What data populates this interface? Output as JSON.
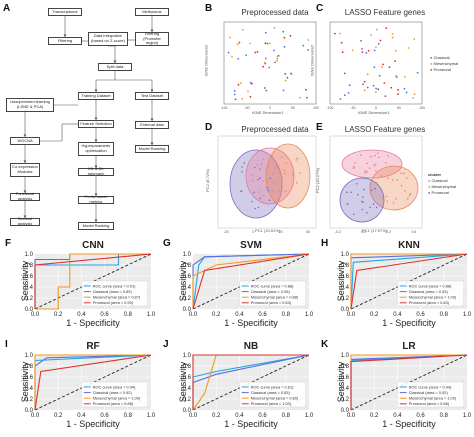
{
  "panel_letters": [
    "A",
    "B",
    "C",
    "D",
    "E",
    "F",
    "G",
    "H",
    "I",
    "J",
    "K"
  ],
  "flowchart": {
    "nodes": {
      "transcriptome": "Transcriptome",
      "methylome": "Methylome",
      "filtering": "Filtering",
      "data_integration": "Data integration (based on Z-score)",
      "filtering_promoter": "Filtering (Promoter region)",
      "split_data": "Split data",
      "training_dataset": "Training Dataset",
      "test_dataset": "Test Dataset",
      "unsupervised": "Unsupervised learning (t-SNE & PCA)",
      "feature_selection": "Feature Selection",
      "wgcna": "WGCNA",
      "hyperparameter": "Hyperparameter optimization",
      "external_data": "External data",
      "coexpression": "Co-expression Modules",
      "ml_dl": "ML & DL approach",
      "model_ranking_right": "Model Ranking",
      "functional": "Functional analysis",
      "performance": "Performance metrics",
      "survival": "Survival analysis",
      "model_ranking_bottom": "Model Ranking"
    }
  },
  "scatter_panels": {
    "B": {
      "title": "Preprocessed data",
      "xlabel": "tSNE Dimension1",
      "ylabel": "tSNE Dimension2",
      "xticks": [
        "-100",
        "-50",
        "0",
        "50",
        "100"
      ]
    },
    "C": {
      "title": "LASSO Feature genes",
      "xlabel": "tSNE Dimension1",
      "ylabel": "tSNE Dimension2",
      "xticks": [
        "-100",
        "-50",
        "0",
        "50",
        "100"
      ],
      "legend": [
        "Classical",
        "Mesenchymal",
        "Proneural"
      ]
    },
    "D": {
      "title": "Preprocessed data",
      "xlabel": "PC1 (10.51%)",
      "ylabel": "PC2 (8.72%)",
      "xticks": [
        "-20",
        "0",
        "20",
        "40"
      ]
    },
    "E": {
      "title": "LASSO Feature genes",
      "xlabel": "PC1 (17.97%)",
      "ylabel": "PC2 (16.27%)",
      "xticks": [
        "-0.2",
        "0.0",
        "0.2",
        "0.4"
      ],
      "legend_title": "cluster",
      "legend": [
        "Classical",
        "Mesenchymal",
        "Proneural"
      ]
    }
  },
  "colors": {
    "roc": "#1fa8e0",
    "classical": "#5b6ee1",
    "mesenchymal": "#f39a1e",
    "proneural": "#e0312b",
    "pca_classical": "#e87a9a",
    "pca_mesenchymal": "#e88a5a",
    "pca_proneural": "#7a6fc0"
  },
  "roc_common": {
    "xlabel": "1 - Specificity",
    "ylabel": "Sensitivity",
    "xticks": [
      "0.0",
      "0.2",
      "0.4",
      "0.6",
      "0.8",
      "1.0"
    ],
    "yticks": [
      "0.0",
      "0.2",
      "0.4",
      "0.6",
      "0.8",
      "1.0"
    ]
  },
  "chart_data": [
    {
      "type": "line",
      "panel": "F",
      "title": "CNN",
      "series": [
        {
          "name": "ROC curve (area = 0.91)",
          "x": [
            0,
            0,
            0.72,
            0.72,
            1
          ],
          "y": [
            0,
            0.8,
            0.8,
            1,
            1
          ]
        },
        {
          "name": "Classical (area = 0.89)",
          "x": [
            0,
            0,
            0.3,
            0.3,
            1
          ],
          "y": [
            0,
            0.9,
            0.9,
            1,
            1
          ]
        },
        {
          "name": "Mesenchymal (area = 0.87)",
          "x": [
            0,
            0.2,
            0.2,
            0.3,
            0.3,
            1
          ],
          "y": [
            0,
            0,
            0.4,
            0.4,
            1,
            1
          ]
        },
        {
          "name": "Proneural (area = 0.90)",
          "x": [
            0,
            0,
            1
          ],
          "y": [
            0,
            0.8,
            1
          ]
        }
      ]
    },
    {
      "type": "line",
      "panel": "G",
      "title": "SVM",
      "series": [
        {
          "name": "ROC curve (area = 0.88)",
          "x": [
            0,
            0.05,
            0.1,
            1
          ],
          "y": [
            0,
            0.8,
            0.95,
            1
          ]
        },
        {
          "name": "Classical (area = 0.95)",
          "x": [
            0,
            0,
            0.1,
            1
          ],
          "y": [
            0,
            0.8,
            0.95,
            1
          ]
        },
        {
          "name": "Mesenchymal (area = 0.88)",
          "x": [
            0,
            0,
            0.2,
            1
          ],
          "y": [
            0,
            0.6,
            0.8,
            1
          ]
        },
        {
          "name": "Proneural (area = 0.83)",
          "x": [
            0,
            0.1,
            1
          ],
          "y": [
            0,
            0.7,
            1
          ]
        }
      ]
    },
    {
      "type": "line",
      "panel": "H",
      "title": "KNN",
      "series": [
        {
          "name": "ROC curve (area = 0.88)",
          "x": [
            0,
            0.02,
            1
          ],
          "y": [
            0,
            0.85,
            1
          ]
        },
        {
          "name": "Classical (area = 0.93)",
          "x": [
            0,
            0,
            1
          ],
          "y": [
            0,
            0.93,
            1
          ]
        },
        {
          "name": "Mesenchymal (area = 1.00)",
          "x": [
            0,
            0,
            1
          ],
          "y": [
            0,
            1,
            1
          ]
        },
        {
          "name": "Proneural (area = 0.83)",
          "x": [
            0,
            0.05,
            1
          ],
          "y": [
            0,
            0.7,
            1
          ]
        }
      ]
    },
    {
      "type": "line",
      "panel": "I",
      "title": "RF",
      "series": [
        {
          "name": "ROC curve (area = 0.94)",
          "x": [
            0,
            0,
            1
          ],
          "y": [
            0,
            0.9,
            1
          ]
        },
        {
          "name": "Classical (area = 0.92)",
          "x": [
            0,
            0,
            0.1,
            1
          ],
          "y": [
            0,
            0.8,
            0.95,
            1
          ]
        },
        {
          "name": "Mesenchymal (area = 1.00)",
          "x": [
            0,
            0,
            1
          ],
          "y": [
            0,
            1,
            1
          ]
        },
        {
          "name": "Proneural (area = 0.88)",
          "x": [
            0,
            0.05,
            1
          ],
          "y": [
            0,
            0.7,
            1
          ]
        }
      ]
    },
    {
      "type": "line",
      "panel": "J",
      "title": "NB",
      "series": [
        {
          "name": "ROC curve (area = 0.81)",
          "x": [
            0,
            0,
            0.2,
            1
          ],
          "y": [
            0,
            0.6,
            0.7,
            1
          ]
        },
        {
          "name": "Classical (area = 0.83)",
          "x": [
            0,
            0,
            0.2,
            1
          ],
          "y": [
            0,
            0.5,
            0.65,
            1
          ]
        },
        {
          "name": "Mesenchymal (area = 0.80)",
          "x": [
            0,
            0.1,
            0.2,
            1
          ],
          "y": [
            0,
            0.3,
            1,
            1
          ]
        },
        {
          "name": "Proneural (area = 1.00)",
          "x": [
            0,
            0,
            1
          ],
          "y": [
            0,
            1,
            1
          ]
        }
      ]
    },
    {
      "type": "line",
      "panel": "K",
      "title": "LR",
      "series": [
        {
          "name": "ROC curve (area = 0.94)",
          "x": [
            0,
            0,
            1
          ],
          "y": [
            0,
            0.9,
            1
          ]
        },
        {
          "name": "Classical (area = 0.92)",
          "x": [
            0,
            0,
            1
          ],
          "y": [
            0,
            0.92,
            1
          ]
        },
        {
          "name": "Mesenchymal (area = 1.00)",
          "x": [
            0,
            0,
            1
          ],
          "y": [
            0,
            1,
            1
          ]
        },
        {
          "name": "Proneural (area = 0.88)",
          "x": [
            0,
            0,
            1
          ],
          "y": [
            0,
            0.88,
            1
          ]
        }
      ]
    }
  ]
}
